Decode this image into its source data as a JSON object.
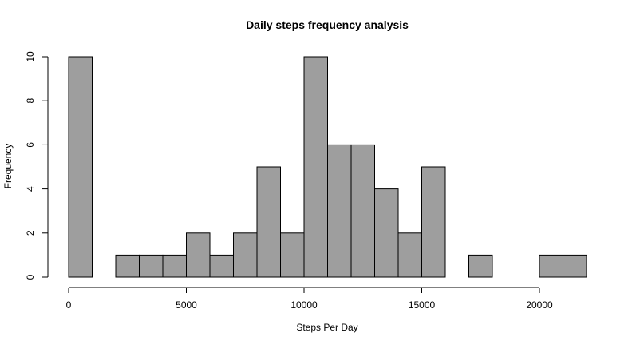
{
  "chart_data": {
    "type": "bar",
    "title": "Daily steps frequency analysis",
    "xlabel": "Steps Per Day",
    "ylabel": "Frequency",
    "xlim": [
      0,
      22000
    ],
    "ylim": [
      0,
      10
    ],
    "x_ticks": [
      0,
      5000,
      10000,
      15000,
      20000
    ],
    "x_tick_labels": [
      "0",
      "5000",
      "10000",
      "15000",
      "20000"
    ],
    "y_ticks": [
      0,
      2,
      4,
      6,
      8,
      10
    ],
    "y_tick_labels": [
      "0",
      "2",
      "4",
      "6",
      "8",
      "10"
    ],
    "bin_width": 1000,
    "bins": [
      {
        "start": 0,
        "end": 1000,
        "count": 10
      },
      {
        "start": 1000,
        "end": 2000,
        "count": 0
      },
      {
        "start": 2000,
        "end": 3000,
        "count": 1
      },
      {
        "start": 3000,
        "end": 4000,
        "count": 1
      },
      {
        "start": 4000,
        "end": 5000,
        "count": 1
      },
      {
        "start": 5000,
        "end": 6000,
        "count": 2
      },
      {
        "start": 6000,
        "end": 7000,
        "count": 1
      },
      {
        "start": 7000,
        "end": 8000,
        "count": 2
      },
      {
        "start": 8000,
        "end": 9000,
        "count": 5
      },
      {
        "start": 9000,
        "end": 10000,
        "count": 2
      },
      {
        "start": 10000,
        "end": 11000,
        "count": 10
      },
      {
        "start": 11000,
        "end": 12000,
        "count": 6
      },
      {
        "start": 12000,
        "end": 13000,
        "count": 6
      },
      {
        "start": 13000,
        "end": 14000,
        "count": 4
      },
      {
        "start": 14000,
        "end": 15000,
        "count": 2
      },
      {
        "start": 15000,
        "end": 16000,
        "count": 5
      },
      {
        "start": 16000,
        "end": 17000,
        "count": 0
      },
      {
        "start": 17000,
        "end": 18000,
        "count": 1
      },
      {
        "start": 18000,
        "end": 19000,
        "count": 0
      },
      {
        "start": 19000,
        "end": 20000,
        "count": 0
      },
      {
        "start": 20000,
        "end": 21000,
        "count": 1
      },
      {
        "start": 21000,
        "end": 22000,
        "count": 1
      }
    ],
    "bar_color": "#9e9e9e",
    "grid": false
  }
}
